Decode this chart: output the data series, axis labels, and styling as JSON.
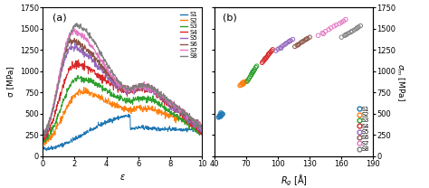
{
  "colors": {
    "S1": "#1f77b4",
    "S2": "#ff7f0e",
    "S3": "#2ca02c",
    "S4": "#d62728",
    "S5": "#9467bd",
    "S6": "#8c564b",
    "S7": "#e377c2",
    "S8": "#7f7f7f"
  },
  "panel_a": {
    "xlabel": "ε",
    "ylabel": "σ [MPa]",
    "title": "(a)",
    "xlim": [
      0,
      10
    ],
    "ylim": [
      0,
      1750
    ],
    "yticks": [
      0,
      250,
      500,
      750,
      1000,
      1250,
      1500,
      1750
    ]
  },
  "panel_b": {
    "xlabel": "R_g [Å]",
    "ylabel": "σ_m [MPa]",
    "title": "(b)",
    "xlim": [
      40,
      190
    ],
    "ylim": [
      0,
      1750
    ],
    "xticks": [
      40,
      70,
      100,
      130,
      160,
      190
    ],
    "yticks": [
      0,
      250,
      500,
      750,
      1000,
      1250,
      1500,
      1750
    ]
  },
  "scatter_data": {
    "S1": {
      "Rg": [
        44,
        45,
        45,
        46,
        47,
        46,
        45,
        47,
        48,
        46,
        44,
        45
      ],
      "sigma_m": [
        460,
        470,
        480,
        490,
        500,
        510,
        470,
        485,
        495,
        465,
        455,
        475
      ]
    },
    "S2": {
      "Rg": [
        64,
        65,
        66,
        67,
        67,
        68,
        69,
        67,
        66,
        68,
        70,
        65
      ],
      "sigma_m": [
        830,
        840,
        855,
        870,
        850,
        860,
        875,
        845,
        855,
        865,
        880,
        835
      ]
    },
    "S3": {
      "Rg": [
        72,
        74,
        75,
        76,
        77,
        78,
        79,
        80,
        75,
        77,
        73,
        71,
        76
      ],
      "sigma_m": [
        900,
        940,
        960,
        980,
        1000,
        1020,
        1045,
        1060,
        965,
        1005,
        920,
        880,
        990
      ]
    },
    "S4": {
      "Rg": [
        85,
        87,
        88,
        89,
        90,
        91,
        92,
        93,
        94,
        95,
        86,
        88,
        91
      ],
      "sigma_m": [
        1100,
        1130,
        1145,
        1160,
        1175,
        1195,
        1210,
        1225,
        1240,
        1255,
        1115,
        1150,
        1200
      ]
    },
    "S5": {
      "Rg": [
        98,
        100,
        102,
        104,
        106,
        108,
        110,
        112,
        114,
        103,
        107,
        111
      ],
      "sigma_m": [
        1240,
        1260,
        1275,
        1295,
        1310,
        1330,
        1345,
        1360,
        1375,
        1270,
        1320,
        1355
      ]
    },
    "S6": {
      "Rg": [
        116,
        118,
        120,
        122,
        124,
        126,
        128,
        130,
        119,
        123,
        127
      ],
      "sigma_m": [
        1290,
        1305,
        1320,
        1340,
        1355,
        1370,
        1385,
        1400,
        1310,
        1345,
        1378
      ]
    },
    "S7": {
      "Rg": [
        138,
        142,
        145,
        148,
        150,
        153,
        155,
        158,
        160,
        162,
        164,
        143
      ],
      "sigma_m": [
        1420,
        1450,
        1470,
        1490,
        1510,
        1530,
        1545,
        1560,
        1575,
        1590,
        1610,
        1440
      ]
    },
    "S8": {
      "Rg": [
        160,
        163,
        165,
        167,
        169,
        170,
        172,
        174,
        175,
        176,
        178,
        164
      ],
      "sigma_m": [
        1400,
        1420,
        1435,
        1450,
        1462,
        1472,
        1485,
        1500,
        1510,
        1520,
        1535,
        1428
      ]
    }
  },
  "curve_params": {
    "S1": {
      "peak_eps": 5.5,
      "peak_stress": 470,
      "init_stress": 85,
      "pre_plateau": 320,
      "plateau_stress": 310,
      "noise": 12
    },
    "S2": {
      "peak_eps": 2.4,
      "peak_stress": 760,
      "init_stress": 155,
      "pre_plateau": 540,
      "plateau_stress": 340,
      "noise": 20
    },
    "S3": {
      "peak_eps": 2.2,
      "peak_stress": 920,
      "init_stress": 180,
      "pre_plateau": 650,
      "plateau_stress": 260,
      "noise": 18
    },
    "S4": {
      "peak_eps": 2.0,
      "peak_stress": 1080,
      "init_stress": 225,
      "pre_plateau": 760,
      "plateau_stress": 280,
      "noise": 22
    },
    "S5": {
      "peak_eps": 1.8,
      "peak_stress": 1280,
      "init_stress": 250,
      "pre_plateau": 760,
      "plateau_stress": 300,
      "noise": 20
    },
    "S6": {
      "peak_eps": 1.8,
      "peak_stress": 1360,
      "init_stress": 265,
      "pre_plateau": 780,
      "plateau_stress": 340,
      "noise": 20
    },
    "S7": {
      "peak_eps": 1.9,
      "peak_stress": 1470,
      "init_stress": 275,
      "pre_plateau": 780,
      "plateau_stress": 350,
      "noise": 18
    },
    "S8": {
      "peak_eps": 2.1,
      "peak_stress": 1540,
      "init_stress": 285,
      "pre_plateau": 790,
      "plateau_stress": 350,
      "noise": 16
    }
  }
}
